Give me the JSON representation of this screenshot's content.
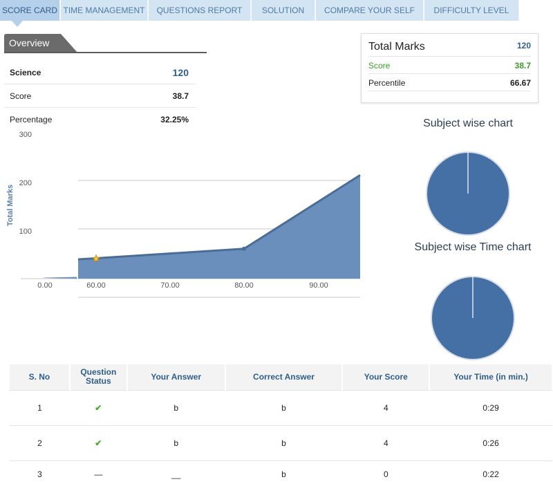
{
  "tabs": [
    {
      "label": "SCORE CARD",
      "active": true
    },
    {
      "label": "TIME MANAGEMENT",
      "active": false
    },
    {
      "label": "QUESTIONS REPORT",
      "active": false
    },
    {
      "label": "SOLUTION",
      "active": false
    },
    {
      "label": "COMPARE YOUR SELF",
      "active": false
    },
    {
      "label": "DIFFICULTY LEVEL",
      "active": false
    }
  ],
  "overview": {
    "title": "Overview",
    "subject": {
      "label": "Science",
      "value": "120"
    },
    "score": {
      "label": "Score",
      "value": "38.7"
    },
    "percentage": {
      "label": "Percentage",
      "value": "32.25%"
    }
  },
  "summary": {
    "total_marks": {
      "label": "Total Marks",
      "value": "120"
    },
    "score": {
      "label": "Score",
      "value": "38.7"
    },
    "percentile": {
      "label": "Percentile",
      "value": "66.67"
    }
  },
  "pies": {
    "subject_wise_title": "Subject wise chart",
    "subject_time_title": "Subject wise Time chart"
  },
  "colors": {
    "accent": "#2f5d8a",
    "chart_fill": "#6a8fbd",
    "chart_line": "#4a6d96",
    "pie_fill": "#4570a6",
    "score_green": "#3b9a2a"
  },
  "chart_data": {
    "type": "area",
    "ylabel": "Total Marks",
    "yticks": [
      "100",
      "200",
      "300"
    ],
    "xticks": [
      "0.00",
      "60.00",
      "70.00",
      "80.00",
      "90.00"
    ],
    "ylim": [
      0,
      300
    ],
    "points": [
      {
        "x": 0,
        "y": 2
      },
      {
        "x": 60,
        "y": 38.7
      },
      {
        "x": 80,
        "y": 60
      },
      {
        "x": 95,
        "y": 208
      }
    ],
    "highlight": {
      "x": 60,
      "y": 38.7
    }
  },
  "questions": {
    "headers": [
      "S. No",
      "Question Status",
      "Your Answer",
      "Correct Answer",
      "Your Score",
      "Your Time (in min.)"
    ],
    "rows": [
      {
        "sno": "1",
        "status": "✔",
        "your_answer": "b",
        "correct_answer": "b",
        "score": "4",
        "time": "0:29"
      },
      {
        "sno": "2",
        "status": "✔",
        "your_answer": "b",
        "correct_answer": "b",
        "score": "4",
        "time": "0:26"
      },
      {
        "sno": "3",
        "status": "—",
        "your_answer": "__",
        "correct_answer": "b",
        "score": "0",
        "time": "0:22"
      }
    ]
  }
}
